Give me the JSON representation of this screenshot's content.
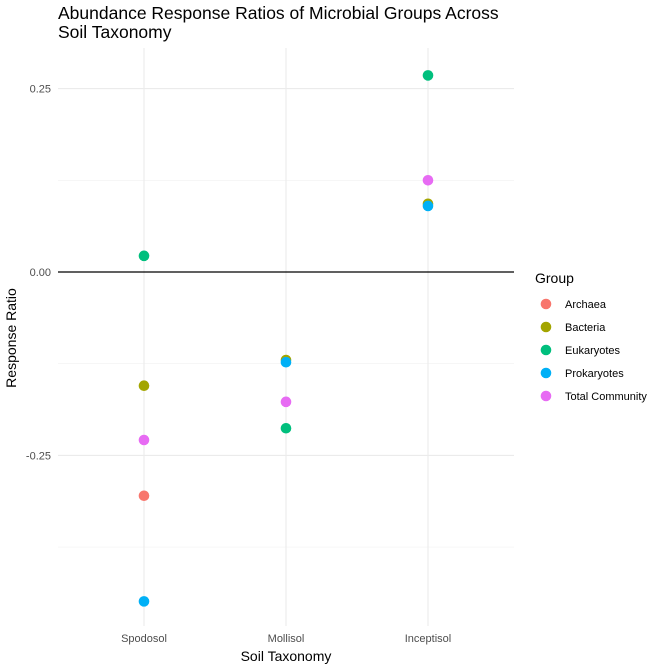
{
  "chart_data": {
    "type": "scatter",
    "title": "Abundance Response Ratios of Microbial Groups Across Soil Taxonomy",
    "title_lines": [
      "Abundance Response Ratios of Microbial Groups Across",
      "Soil Taxonomy"
    ],
    "xlabel": "Soil Taxonomy",
    "ylabel": "Response Ratio",
    "categories": [
      "Spodosol",
      "Mollisol",
      "Inceptisol"
    ],
    "y_ticks": [
      0.25,
      0.0,
      -0.25
    ],
    "y_tick_labels": [
      "0.25",
      "0.00",
      "-0.25"
    ],
    "ylim": [
      -0.48,
      0.31
    ],
    "grid": true,
    "reference_line": 0,
    "legend": {
      "title": "Group",
      "position": "right"
    },
    "series": [
      {
        "name": "Archaea",
        "color": "#F8766D",
        "values": [
          -0.305,
          null,
          null
        ]
      },
      {
        "name": "Bacteria",
        "color": "#A3A500",
        "values": [
          -0.155,
          -0.12,
          0.093
        ]
      },
      {
        "name": "Eukaryotes",
        "color": "#00BF7D",
        "values": [
          0.022,
          -0.213,
          0.268
        ]
      },
      {
        "name": "Prokaryotes",
        "color": "#00B0F6",
        "values": [
          -0.449,
          -0.123,
          0.09
        ]
      },
      {
        "name": "Total Community",
        "color": "#E76BF3",
        "values": [
          -0.229,
          -0.177,
          0.125
        ]
      }
    ]
  }
}
